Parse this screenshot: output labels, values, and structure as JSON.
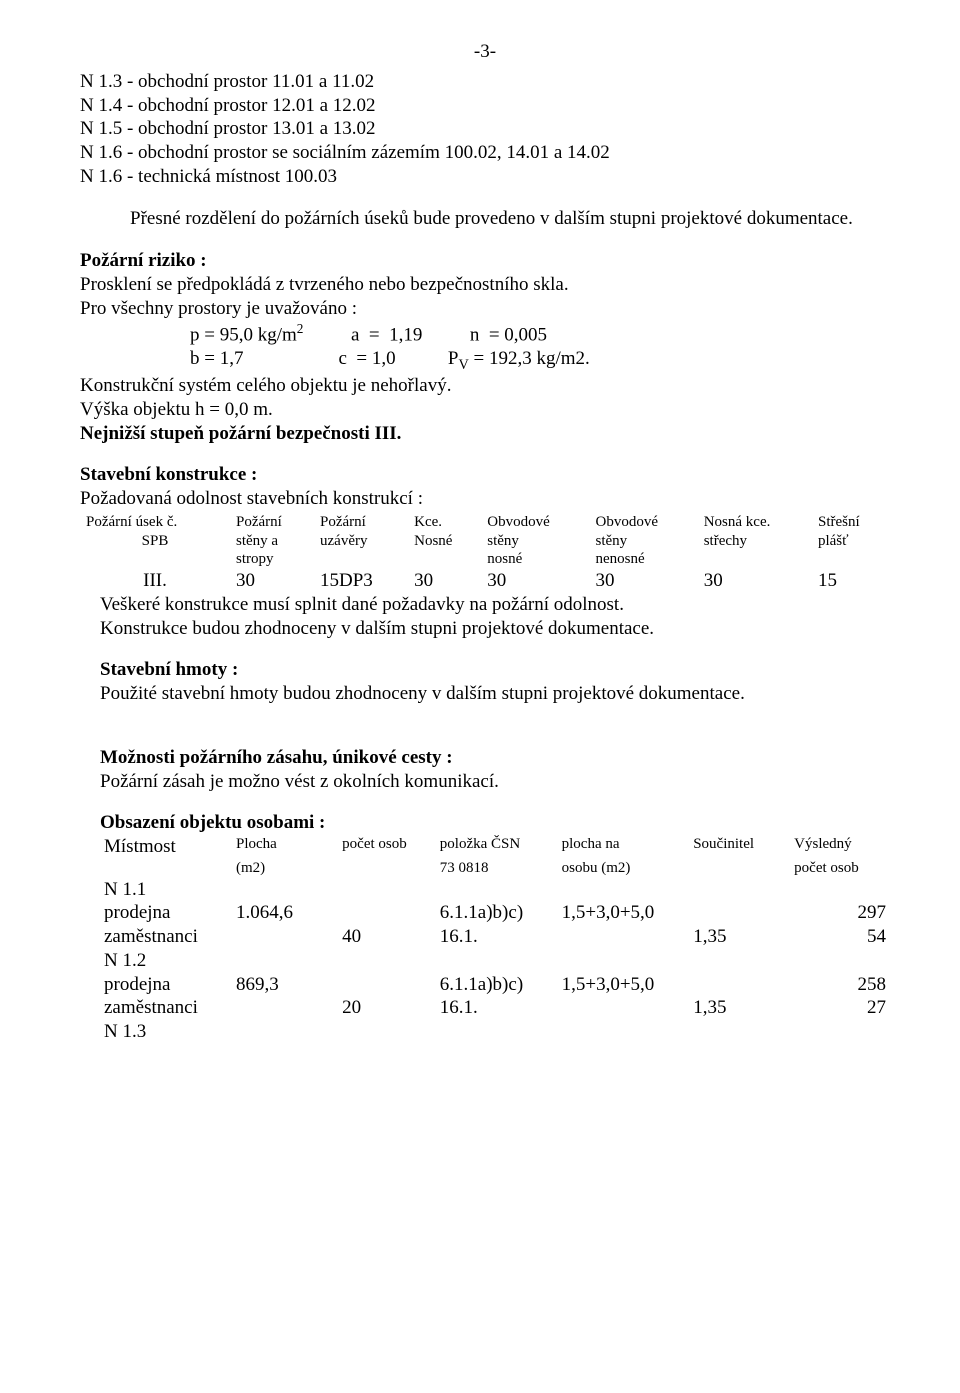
{
  "page_number": "-3-",
  "rooms": [
    "N 1.3 - obchodní prostor 11.01 a 11.02",
    "N 1.4 - obchodní prostor 12.01 a 12.02",
    "N 1.5 - obchodní prostor 13.01 a 13.02",
    "N 1.6 - obchodní prostor se sociálním zázemím 100.02, 14.01 a 14.02",
    "N 1.6 - technická místnost 100.03"
  ],
  "para_division": "Přesné rozdělení do požárních úseků bude provedeno v dalším stupni projektové dokumentace.",
  "fire_risk": {
    "heading": "Požární riziko  :",
    "l1": "Prosklení se předpokládá z tvrzeného nebo bezpečnostního skla.",
    "l2": "Pro všechny prostory je uvažováno :",
    "row1_a": "p = 95,0 kg/m",
    "row1_b": "a  =  1,19",
    "row1_c": "n  = 0,005",
    "row2_a": "b = 1,7",
    "row2_b": "c  = 1,0",
    "row2_c_pre": "P",
    "row2_c_sub": "V",
    "row2_c_post": " = 192,3 kg/m2.",
    "l3": "Konstrukční systém celého objektu je nehořlavý.",
    "l4": "Výška objektu h = 0,0 m.",
    "l5": "Nejnižší stupeň požární bezpečnosti III."
  },
  "constructions": {
    "heading": "Stavební konstrukce :",
    "sub": "Požadovaná odolnost stavebních konstrukcí :",
    "head_l1": [
      "Požární úsek č.",
      "Požární",
      "Požární",
      "Kce.",
      "Obvodové",
      "Obvodové",
      "Nosná kce.",
      "Střešní"
    ],
    "head_l2": [
      "SPB",
      "stěny a",
      "uzávěry",
      "Nosné",
      "stěny",
      "stěny",
      "střechy",
      "plášť"
    ],
    "head_l3": [
      "",
      "stropy",
      "",
      "",
      "nosné",
      "nenosné",
      "",
      ""
    ],
    "values": [
      "III.",
      "30",
      "15DP3",
      "30",
      "30",
      "30",
      "30",
      "15"
    ],
    "p1": "Veškeré konstrukce musí splnit dané požadavky na požární odolnost.",
    "p2": "Konstrukce budou zhodnoceny v dalším stupni projektové dokumentace."
  },
  "materials": {
    "heading": "Stavební hmoty :",
    "p": "Použité stavební hmoty budou zhodnoceny v dalším stupni projektové dokumentace."
  },
  "firefighting": {
    "heading": "Možnosti požárního zásahu, únikové cesty :",
    "p": "Požární  zásah  je  možno vést  z okolních komunikací."
  },
  "occupancy": {
    "heading": "Obsazení objektu osobami :",
    "head_l1": [
      "Místmost",
      "Plocha",
      "počet osob",
      "položka ČSN",
      "plocha na",
      "Součinitel",
      "Výsledný"
    ],
    "head_l2": [
      "",
      "(m2)",
      "",
      "73 0818",
      "osobu (m2)",
      "",
      "počet osob"
    ],
    "rows": [
      [
        "N 1.1",
        "",
        "",
        "",
        "",
        "",
        ""
      ],
      [
        "prodejna",
        "1.064,6",
        "",
        "6.1.1a)b)c)",
        "1,5+3,0+5,0",
        "",
        "297"
      ],
      [
        "zaměstnanci",
        "",
        "40",
        "16.1.",
        "",
        "1,35",
        "54"
      ],
      [
        "N 1.2",
        "",
        "",
        "",
        "",
        "",
        ""
      ],
      [
        "prodejna",
        "869,3",
        "",
        "6.1.1a)b)c)",
        "1,5+3,0+5,0",
        "",
        "258"
      ],
      [
        "zaměstnanci",
        "",
        "20",
        "16.1.",
        "",
        "1,35",
        "27"
      ],
      [
        "N 1.3",
        "",
        "",
        "",
        "",
        "",
        ""
      ]
    ]
  }
}
